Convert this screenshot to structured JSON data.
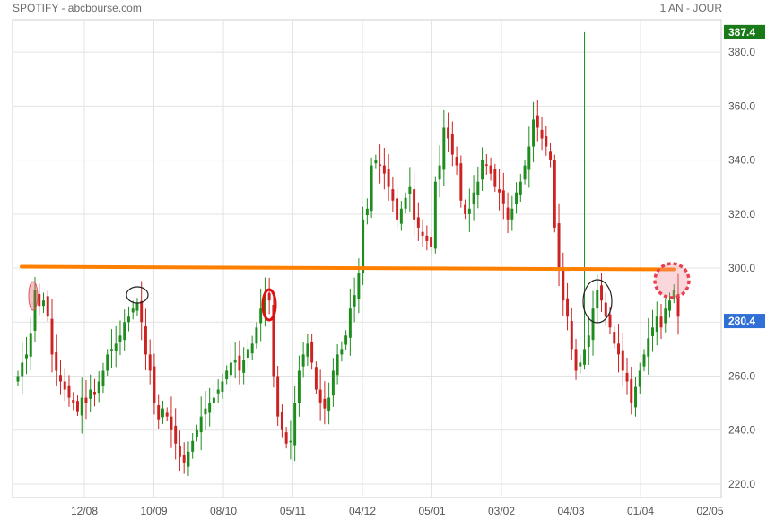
{
  "header": {
    "title": "SPOTIFY - abcbourse.com",
    "period": "1 AN - JOUR"
  },
  "colors": {
    "up": "#1e8c1e",
    "down": "#cc2222",
    "resistance": "#ff8000",
    "badge_high": "#1a7a1a",
    "badge_last": "#2f6fd6",
    "grid": "#e3e3e3"
  },
  "chart_data": {
    "type": "candlestick",
    "ylim": [
      215,
      392
    ],
    "y_ticks": [
      "220.0",
      "240.0",
      "260.0",
      "280.0",
      "300.0",
      "320.0",
      "340.0",
      "360.0",
      "380.0"
    ],
    "x_ticks": [
      "12/08",
      "10/09",
      "08/10",
      "05/11",
      "04/12",
      "05/01",
      "03/02",
      "04/03",
      "01/04",
      "02/05"
    ],
    "grid": true,
    "high_label": "387.4",
    "last_label": "280.4",
    "high_value": 387.4,
    "last_value": 280.4,
    "resistance_line": {
      "value_start": 300.5,
      "value_end": 299.5
    },
    "closes": [
      260,
      265,
      268,
      276,
      292,
      286,
      288,
      282,
      268,
      262,
      258,
      255,
      252,
      250,
      247,
      252,
      250,
      255,
      253,
      258,
      262,
      268,
      270,
      272,
      275,
      280,
      282,
      285,
      287,
      280,
      268,
      262,
      250,
      244,
      248,
      245,
      240,
      235,
      230,
      228,
      232,
      236,
      240,
      245,
      248,
      250,
      252,
      255,
      258,
      262,
      265,
      266,
      262,
      266,
      270,
      272,
      278,
      285,
      290,
      288,
      260,
      245,
      240,
      235,
      236,
      250,
      262,
      268,
      272,
      265,
      255,
      250,
      248,
      252,
      262,
      268,
      270,
      275,
      285,
      290,
      298,
      318,
      322,
      338,
      340,
      338,
      335,
      330,
      325,
      318,
      322,
      326,
      330,
      318,
      315,
      312,
      310,
      308,
      332,
      338,
      352,
      348,
      342,
      338,
      325,
      320,
      322,
      328,
      332,
      340,
      338,
      335,
      330,
      328,
      324,
      318,
      322,
      328,
      332,
      338,
      345,
      355,
      352,
      348,
      345,
      340,
      315,
      300,
      288,
      282,
      270,
      262,
      265,
      270,
      275,
      285,
      292,
      288,
      282,
      278,
      272,
      268,
      262,
      258,
      250,
      256,
      262,
      268,
      274,
      278,
      282,
      278,
      285,
      288,
      292,
      282
    ]
  }
}
